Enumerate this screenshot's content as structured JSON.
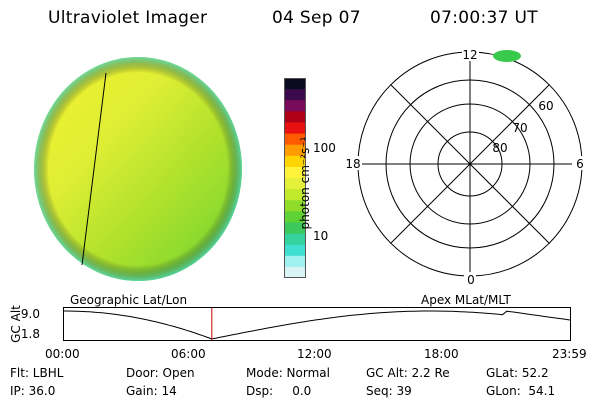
{
  "header": {
    "instrument": "Ultraviolet Imager",
    "date": "04 Sep 07",
    "time": "07:00:37 UT"
  },
  "colorbar": {
    "label": "photon cm⁻²s⁻¹",
    "tick_labels": [
      "100",
      "10"
    ],
    "colors": [
      "#0b0b1f",
      "#3a0a4a",
      "#7a0a5a",
      "#b00018",
      "#e81010",
      "#ff5a00",
      "#ff9c00",
      "#ffd400",
      "#fff23a",
      "#e4f03a",
      "#c2ea2c",
      "#8fdc2a",
      "#5fd235",
      "#3cc85a",
      "#34d29c",
      "#40e0d0",
      "#9ff0ef",
      "#d8f4f4"
    ]
  },
  "polar_plot": {
    "mlt_labels": [
      "12",
      "6",
      "0",
      "18"
    ],
    "lat_labels": [
      "60",
      "70",
      "80"
    ]
  },
  "coord_labels": {
    "left": "Geographic Lat/Lon",
    "right": "Apex MLat/MLT"
  },
  "timeline": {
    "axis_title": "GC Alt",
    "y_ticks": [
      "9.0",
      "1.8"
    ],
    "x_ticks": [
      "00:00",
      "06:00",
      "12:00",
      "18:00",
      "23:59"
    ],
    "current_time_fraction": 0.292
  },
  "info": [
    [
      "Flt: LBHL",
      "Door: Open",
      "Mode: Normal",
      "GC Alt: 2.2 Re",
      "GLat: 52.2"
    ],
    [
      "IP: 36.0",
      "Gain: 14",
      "Dsp:     0.0",
      "Seq: 39",
      "GLon:  54.1"
    ]
  ]
}
